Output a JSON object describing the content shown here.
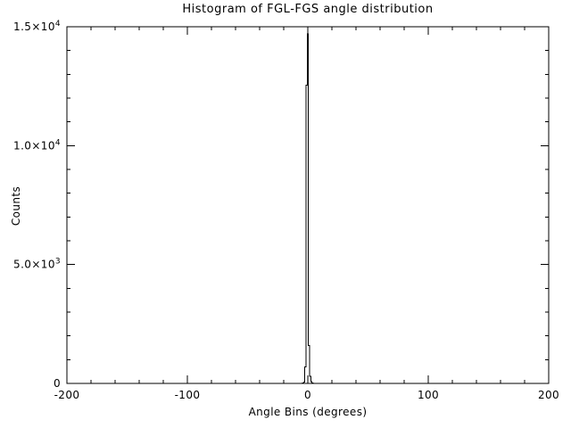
{
  "chart_data": {
    "type": "line",
    "style": "histogram-step",
    "title": "Histogram of FGL-FGS angle distribution",
    "xlabel": "Angle Bins (degrees)",
    "ylabel": "Counts",
    "xlim": [
      -200,
      200
    ],
    "ylim": [
      0,
      15000
    ],
    "grid": false,
    "legend": "none",
    "line_color": "#000000",
    "axis_color": "#000000",
    "background_color": "#ffffff",
    "x_ticks": [
      {
        "value": -200,
        "label": "-200"
      },
      {
        "value": -100,
        "label": "-100"
      },
      {
        "value": 0,
        "label": "0"
      },
      {
        "value": 100,
        "label": "100"
      },
      {
        "value": 200,
        "label": "200"
      }
    ],
    "y_ticks": [
      {
        "value": 0,
        "label": "0",
        "exp": ""
      },
      {
        "value": 5000,
        "label": "5.0×10",
        "exp": "3"
      },
      {
        "value": 10000,
        "label": "1.0×10",
        "exp": "4"
      },
      {
        "value": 15000,
        "label": "1.5×10",
        "exp": "4"
      }
    ],
    "x_minor_interval": 20,
    "y_minor_interval": 1000,
    "bin_width": 1,
    "bins": [
      -8,
      -7,
      -6,
      -5,
      -4,
      -3,
      -2,
      -1,
      0,
      1,
      2,
      3,
      4,
      5,
      6,
      7,
      8
    ],
    "counts": [
      0,
      0,
      2,
      5,
      15,
      60,
      700,
      12550,
      14700,
      1600,
      300,
      80,
      25,
      8,
      3,
      0,
      0
    ]
  }
}
